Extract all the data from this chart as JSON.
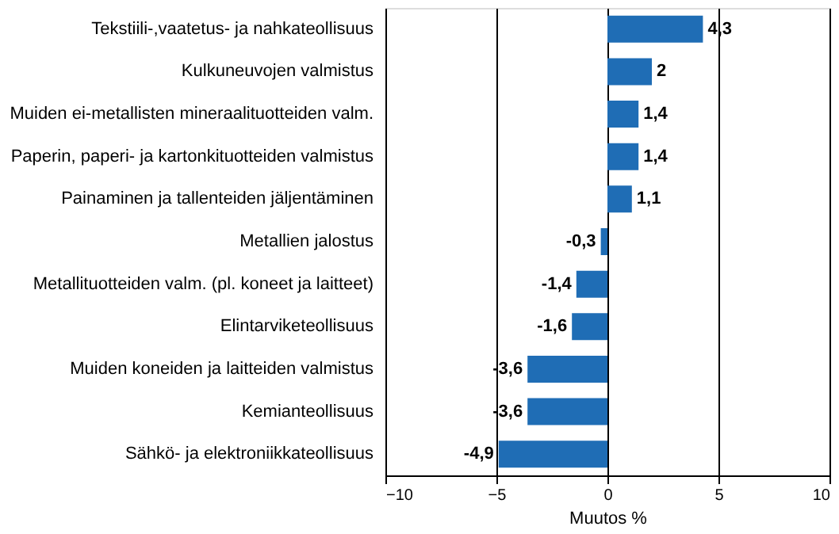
{
  "chart_data": {
    "type": "bar",
    "orientation": "horizontal",
    "categories": [
      "Tekstiili-,vaatetus- ja nahkateollisuus",
      "Kulkuneuvojen valmistus",
      "Muiden ei-metallisten mineraalituotteiden valm.",
      "Paperin, paperi- ja kartonkituotteiden valmistus",
      "Painaminen ja tallenteiden jäljentäminen",
      "Metallien jalostus",
      "Metallituotteiden valm. (pl. koneet ja laitteet)",
      "Elintarviketeollisuus",
      "Muiden koneiden ja laitteiden valmistus",
      "Kemianteollisuus",
      "Sähkö- ja elektroniikkateollisuus"
    ],
    "values": [
      4.3,
      2,
      1.4,
      1.4,
      1.1,
      -0.3,
      -1.4,
      -1.6,
      -3.6,
      -3.6,
      -4.9
    ],
    "value_labels": [
      "4,3",
      "2",
      "1,4",
      "1,4",
      "1,1",
      "-0,3",
      "-1,4",
      "-1,6",
      "-3,6",
      "-3,6",
      "-4,9"
    ],
    "color": "#1f6db5",
    "xlim": [
      -10,
      10
    ],
    "xticks": [
      -10,
      -5,
      0,
      5,
      10
    ],
    "xlabel": "Muutos  %",
    "grid": "x"
  }
}
